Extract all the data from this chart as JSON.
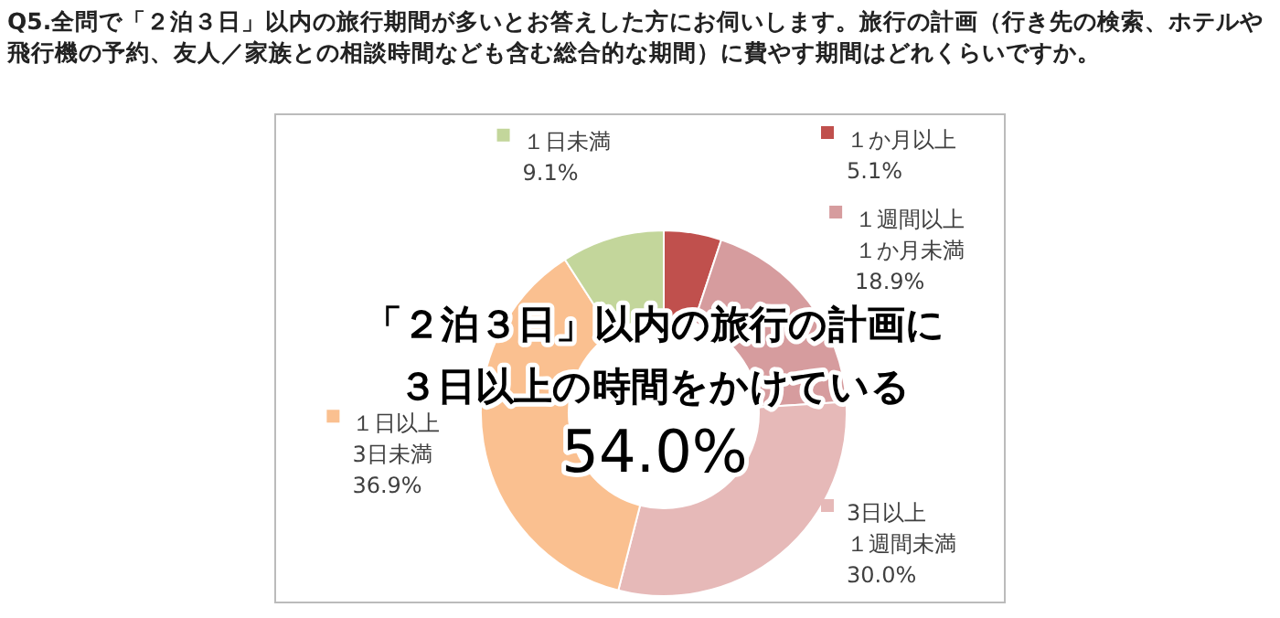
{
  "chart_data": {
    "type": "donut",
    "title": "Q5.全問で「２泊３日」以内の旅行期間が多いとお答えした方にお伺いします。旅行の計画（行き先の検索、ホテルや飛行機の予約、友人／家族との相談時間なども含む総合的な期間）に費やす期間はどれくらいですか。",
    "categories": [
      "１か月以上",
      "１週間以上１か月未満",
      "3日以上１週間未満",
      "１日以上3日未満",
      "１日未満"
    ],
    "values": [
      5.1,
      18.9,
      30.0,
      36.9,
      9.1
    ],
    "value_labels": [
      "5.1%",
      "18.9%",
      "30.0%",
      "36.9%",
      "9.1%"
    ],
    "colors": [
      "#c0504d",
      "#d69c9e",
      "#e6b9b8",
      "#fac090",
      "#c3d69b"
    ],
    "annotations": [
      "「２泊３日」以内の旅行の計画に",
      "３日以上の時間をかけている",
      "54.0%"
    ],
    "legend": "top"
  }
}
